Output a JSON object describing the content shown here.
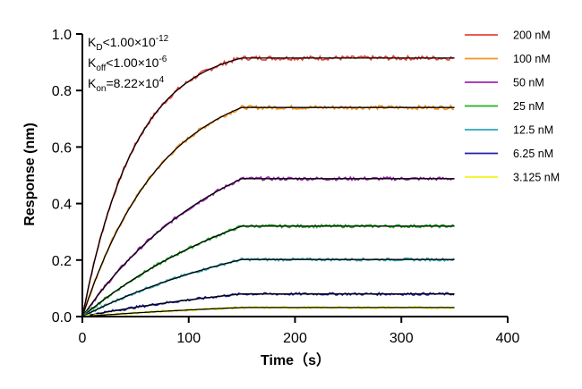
{
  "chart_data": {
    "type": "line",
    "xlabel": "Time（s）",
    "ylabel": "Response (nm)",
    "xlim": [
      0,
      400
    ],
    "ylim": [
      0,
      1.0
    ],
    "x_ticks": [
      "0",
      "100",
      "200",
      "300",
      "400"
    ],
    "y_ticks": [
      "0.0",
      "0.2",
      "0.4",
      "0.6",
      "0.8",
      "1.0"
    ],
    "grid": false,
    "legend_position": "right",
    "association_end": 150,
    "run_end": 350,
    "annotations": [
      {
        "main": "K",
        "sub": "D",
        "rest": "<1.00×10",
        "sup": "-12"
      },
      {
        "main": "K",
        "sub": "off",
        "rest": "<1.00×10",
        "sup": "-6"
      },
      {
        "main": "K",
        "sub": "on",
        "rest": "=8.22×10",
        "sup": "4"
      }
    ],
    "fit_color": "#000000",
    "series": [
      {
        "name": "200 nM",
        "color": "#e8423a",
        "plateau": 0.915
      },
      {
        "name": "100 nM",
        "color": "#f7941d",
        "plateau": 0.74
      },
      {
        "name": "50 nM",
        "color": "#9b27b0",
        "plateau": 0.488
      },
      {
        "name": "25 nM",
        "color": "#22b022",
        "plateau": 0.32
      },
      {
        "name": "12.5 nM",
        "color": "#2aa6b8",
        "plateau": 0.202
      },
      {
        "name": "6.25 nM",
        "color": "#1f1fb0",
        "plateau": 0.08
      },
      {
        "name": "3.125 nM",
        "color": "#f2f21e",
        "plateau": 0.032
      }
    ]
  }
}
